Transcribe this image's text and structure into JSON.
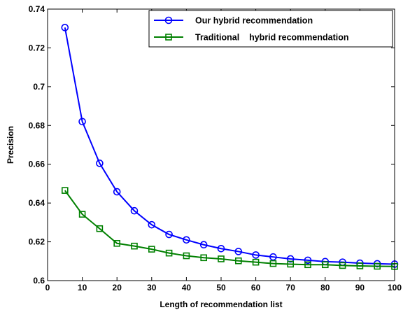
{
  "chart_data": {
    "type": "line",
    "title": "",
    "xlabel": "Length of recommendation list",
    "ylabel": "Precision",
    "xlim": [
      0,
      100
    ],
    "ylim": [
      0.6,
      0.74
    ],
    "xticks": [
      0,
      10,
      20,
      30,
      40,
      50,
      60,
      70,
      80,
      90,
      100
    ],
    "yticks": [
      0.6,
      0.62,
      0.64,
      0.66,
      0.68,
      0.7,
      0.72,
      0.74
    ],
    "x": [
      5,
      10,
      15,
      20,
      25,
      30,
      35,
      40,
      45,
      50,
      55,
      60,
      65,
      70,
      75,
      80,
      85,
      90,
      95,
      100
    ],
    "grid": false,
    "legend": "top-right",
    "series": [
      {
        "name": "Our hybrid recommendation",
        "color": "#0000ff",
        "marker": "circle",
        "values": [
          0.7305,
          0.682,
          0.6605,
          0.6458,
          0.636,
          0.6288,
          0.6238,
          0.621,
          0.6185,
          0.6165,
          0.615,
          0.6132,
          0.6122,
          0.6112,
          0.6105,
          0.6098,
          0.6095,
          0.609,
          0.6087,
          0.6085
        ]
      },
      {
        "name": "Traditional    hybrid recommendation",
        "color": "#008000",
        "marker": "square",
        "values": [
          0.6465,
          0.6342,
          0.6268,
          0.6192,
          0.6178,
          0.6162,
          0.6142,
          0.6128,
          0.6118,
          0.6112,
          0.6102,
          0.6095,
          0.6088,
          0.6085,
          0.6082,
          0.6082,
          0.6078,
          0.6076,
          0.6074,
          0.6073
        ]
      }
    ]
  }
}
